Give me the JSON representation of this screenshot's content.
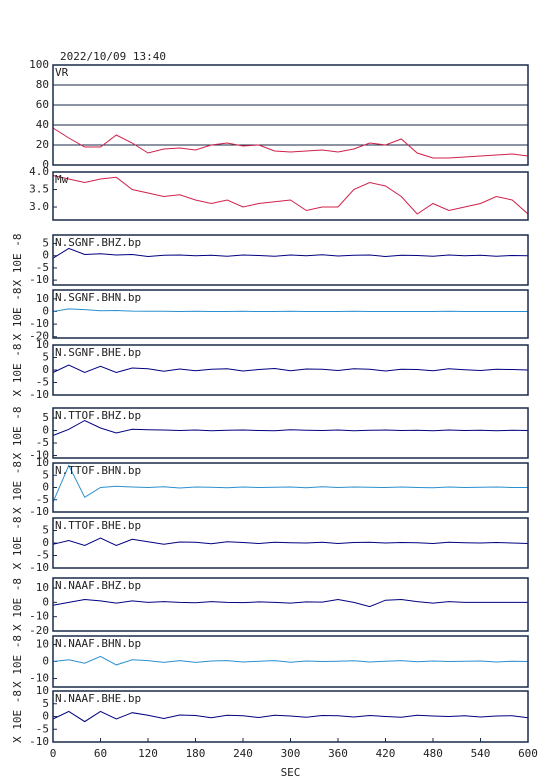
{
  "header": {
    "date": "2022/10/09 13:40"
  },
  "chart_data": [
    {
      "type": "line",
      "title": "VR",
      "color": "#d0204a",
      "grid": true,
      "xlim": [
        0,
        600
      ],
      "ylim": [
        0,
        100
      ],
      "yticks": [
        0,
        20,
        40,
        60,
        80,
        100
      ],
      "x": [
        0,
        20,
        40,
        60,
        80,
        100,
        120,
        140,
        160,
        180,
        200,
        220,
        240,
        260,
        280,
        300,
        320,
        340,
        360,
        380,
        400,
        420,
        440,
        460,
        480,
        500,
        520,
        540,
        560,
        580,
        600
      ],
      "values": [
        37,
        27,
        18,
        18,
        30,
        22,
        12,
        16,
        17,
        15,
        20,
        22,
        19,
        20,
        14,
        13,
        14,
        15,
        13,
        16,
        22,
        20,
        26,
        12,
        7,
        7,
        8,
        9,
        10,
        11,
        9
      ]
    },
    {
      "type": "line",
      "title": "Mw",
      "color": "#d0204a",
      "grid": false,
      "xlim": [
        0,
        600
      ],
      "ylim": [
        2.63,
        4.0
      ],
      "yticks": [
        {
          "value": 3,
          "label": "3.0"
        },
        3.5,
        {
          "value": 4,
          "label": "4.0"
        }
      ],
      "x": [
        0,
        20,
        40,
        60,
        80,
        100,
        120,
        140,
        160,
        180,
        200,
        220,
        240,
        260,
        280,
        300,
        320,
        340,
        360,
        380,
        400,
        420,
        440,
        460,
        480,
        500,
        520,
        540,
        560,
        580,
        600
      ],
      "values": [
        3.9,
        3.8,
        3.7,
        3.8,
        3.85,
        3.5,
        3.4,
        3.3,
        3.35,
        3.2,
        3.1,
        3.2,
        3.0,
        3.1,
        3.15,
        3.2,
        2.9,
        3.0,
        3.0,
        3.5,
        3.7,
        3.6,
        3.3,
        2.8,
        3.1,
        2.9,
        3.0,
        3.1,
        3.3,
        3.2,
        2.8
      ]
    },
    {
      "type": "line",
      "title": "N.SGNF.BHZ.bp",
      "ylabel": "X 10E -8",
      "color": "#000080",
      "grid": false,
      "xlim": [
        0,
        600
      ],
      "ylim": [
        -12,
        8.5
      ],
      "yticks": [
        5,
        0,
        -5,
        -10
      ],
      "x": [
        0,
        20,
        40,
        60,
        80,
        100,
        120,
        140,
        160,
        180,
        200,
        220,
        240,
        260,
        280,
        300,
        320,
        340,
        360,
        380,
        400,
        420,
        440,
        460,
        480,
        500,
        520,
        540,
        560,
        580,
        600
      ],
      "values": [
        -1,
        3,
        0.5,
        0.8,
        0.3,
        0.5,
        -0.3,
        0.2,
        0.3,
        0,
        0.2,
        -0.2,
        0.3,
        0.1,
        -0.2,
        0.3,
        0,
        0.4,
        -0.1,
        0.2,
        0.3,
        -0.3,
        0.2,
        0.1,
        -0.2,
        0.3,
        0,
        0.2,
        -0.2,
        0.1,
        0
      ]
    },
    {
      "type": "line",
      "title": "N.SGNF.BHN.bp",
      "ylabel": "X 10E -8",
      "color": "#2a8fd0",
      "grid": false,
      "xlim": [
        0,
        600
      ],
      "ylim": [
        -21,
        17
      ],
      "yticks": [
        10,
        0,
        -10,
        -20
      ],
      "x": [
        0,
        20,
        40,
        60,
        80,
        100,
        120,
        140,
        160,
        180,
        200,
        220,
        240,
        260,
        280,
        300,
        320,
        340,
        360,
        380,
        400,
        420,
        440,
        460,
        480,
        500,
        520,
        540,
        560,
        580,
        600
      ],
      "values": [
        0,
        2,
        1.5,
        0.5,
        0.8,
        0.3,
        0.2,
        0.1,
        0,
        0.1,
        0,
        0,
        0.1,
        0,
        0,
        0.1,
        0,
        0,
        0,
        0.1,
        0,
        0,
        0,
        0,
        0,
        0.1,
        0,
        0,
        0,
        0,
        0
      ]
    },
    {
      "type": "line",
      "title": "N.SGNF.BHE.bp",
      "ylabel": "X 10E -8",
      "color": "#000080",
      "grid": false,
      "xlim": [
        0,
        600
      ],
      "ylim": [
        -10,
        10
      ],
      "yticks": [
        10,
        5,
        0,
        -5,
        -10
      ],
      "x": [
        0,
        20,
        40,
        60,
        80,
        100,
        120,
        140,
        160,
        180,
        200,
        220,
        240,
        260,
        280,
        300,
        320,
        340,
        360,
        380,
        400,
        420,
        440,
        460,
        480,
        500,
        520,
        540,
        560,
        580,
        600
      ],
      "values": [
        -1,
        2,
        -1,
        1.5,
        -1,
        0.8,
        0.5,
        -0.5,
        0.4,
        -0.3,
        0.3,
        0.5,
        -0.4,
        0.2,
        0.6,
        -0.3,
        0.4,
        0.3,
        -0.2,
        0.5,
        0.3,
        -0.4,
        0.3,
        0.2,
        -0.3,
        0.5,
        0.1,
        -0.2,
        0.3,
        0.2,
        0
      ]
    },
    {
      "type": "line",
      "title": "N.TTOF.BHZ.bp",
      "ylabel": "X 10E -8",
      "color": "#000080",
      "grid": false,
      "xlim": [
        0,
        600
      ],
      "ylim": [
        -11,
        9
      ],
      "yticks": [
        5,
        0,
        -5,
        -10
      ],
      "x": [
        0,
        20,
        40,
        60,
        80,
        100,
        120,
        140,
        160,
        180,
        200,
        220,
        240,
        260,
        280,
        300,
        320,
        340,
        360,
        380,
        400,
        420,
        440,
        460,
        480,
        500,
        520,
        540,
        560,
        580,
        600
      ],
      "values": [
        -2,
        0.5,
        4,
        1,
        -1,
        0.5,
        0.3,
        0.2,
        0,
        0.2,
        -0.1,
        0.1,
        0.2,
        0,
        -0.1,
        0.3,
        0.1,
        0,
        0.2,
        -0.1,
        0.1,
        0.2,
        0,
        0.1,
        -0.1,
        0.2,
        0,
        0.1,
        -0.1,
        0.1,
        0
      ]
    },
    {
      "type": "line",
      "title": "N.TTOF.BHN.bp",
      "ylabel": "X 10E -8",
      "color": "#2a8fd0",
      "grid": false,
      "xlim": [
        0,
        600
      ],
      "ylim": [
        -10,
        10
      ],
      "yticks": [
        10,
        5,
        0,
        -5,
        -10
      ],
      "x": [
        0,
        20,
        40,
        60,
        80,
        100,
        120,
        140,
        160,
        180,
        200,
        220,
        240,
        260,
        280,
        300,
        320,
        340,
        360,
        380,
        400,
        420,
        440,
        460,
        480,
        500,
        520,
        540,
        560,
        580,
        600
      ],
      "values": [
        -6,
        9,
        -4,
        0,
        0.5,
        0.2,
        0,
        0.3,
        -0.2,
        0.2,
        0.1,
        -0.1,
        0.2,
        0,
        0.1,
        0.2,
        -0.1,
        0.3,
        0,
        0.2,
        0.1,
        0,
        0.2,
        0,
        -0.1,
        0.2,
        0,
        0.1,
        0.2,
        0,
        0
      ]
    },
    {
      "type": "line",
      "title": "N.TTOF.BHE.bp",
      "ylabel": "X 10E -8",
      "color": "#000080",
      "grid": false,
      "xlim": [
        0,
        600
      ],
      "ylim": [
        -10,
        10
      ],
      "yticks": [
        5,
        0,
        -5,
        -10
      ],
      "x": [
        0,
        20,
        40,
        60,
        80,
        100,
        120,
        140,
        160,
        180,
        200,
        220,
        240,
        260,
        280,
        300,
        320,
        340,
        360,
        380,
        400,
        420,
        440,
        460,
        480,
        500,
        520,
        540,
        560,
        580,
        600
      ],
      "values": [
        -0.5,
        1,
        -1,
        2,
        -1,
        1.5,
        0.5,
        -0.5,
        0.4,
        0.3,
        -0.3,
        0.5,
        0.2,
        -0.2,
        0.3,
        0.1,
        0,
        0.3,
        -0.2,
        0.2,
        0.3,
        0,
        0.2,
        0.1,
        -0.2,
        0.3,
        0.1,
        0,
        0.2,
        0,
        -0.2
      ]
    },
    {
      "type": "line",
      "title": "N.NAAF.BHZ.bp",
      "ylabel": "X 10E -8",
      "color": "#000080",
      "grid": false,
      "xlim": [
        0,
        600
      ],
      "ylim": [
        -20,
        17
      ],
      "yticks": [
        10,
        0,
        -10,
        -20
      ],
      "x": [
        0,
        20,
        40,
        60,
        80,
        100,
        120,
        140,
        160,
        180,
        200,
        220,
        240,
        260,
        280,
        300,
        320,
        340,
        360,
        380,
        400,
        420,
        440,
        460,
        480,
        500,
        520,
        540,
        560,
        580,
        600
      ],
      "values": [
        -2,
        0,
        2,
        1,
        -0.5,
        1,
        0,
        0.5,
        0,
        -0.3,
        0.5,
        0,
        -0.2,
        0.3,
        0,
        -0.5,
        0.3,
        0.2,
        2,
        0,
        -3,
        1.5,
        2,
        0.5,
        -0.5,
        0.5,
        0,
        0,
        0,
        0,
        0
      ]
    },
    {
      "type": "line",
      "title": "N.NAAF.BHN.bp",
      "ylabel": "X 10E -8",
      "color": "#2a8fd0",
      "grid": false,
      "xlim": [
        0,
        600
      ],
      "ylim": [
        -15,
        15
      ],
      "yticks": [
        10,
        0,
        -10
      ],
      "x": [
        0,
        20,
        40,
        60,
        80,
        100,
        120,
        140,
        160,
        180,
        200,
        220,
        240,
        260,
        280,
        300,
        320,
        340,
        360,
        380,
        400,
        420,
        440,
        460,
        480,
        500,
        520,
        540,
        560,
        580,
        600
      ],
      "values": [
        0,
        1,
        -1,
        3,
        -2,
        1,
        0.5,
        -0.5,
        0.5,
        -0.5,
        0.3,
        0.5,
        -0.3,
        0.2,
        0.5,
        -0.4,
        0.3,
        0,
        0.2,
        0.4,
        -0.3,
        0.2,
        0.5,
        -0.2,
        0.3,
        0,
        0.2,
        0.3,
        -0.3,
        0.2,
        0
      ]
    },
    {
      "type": "line",
      "title": "N.NAAF.BHE.bp",
      "ylabel": "X 10E -8",
      "xlabel": "SEC",
      "color": "#000080",
      "grid": false,
      "xlim": [
        0,
        600
      ],
      "ylim": [
        -10,
        10
      ],
      "yticks": [
        10,
        5,
        0,
        -5,
        -10
      ],
      "xticks": [
        0,
        60,
        120,
        180,
        240,
        300,
        360,
        420,
        480,
        540,
        600
      ],
      "x": [
        0,
        20,
        40,
        60,
        80,
        100,
        120,
        140,
        160,
        180,
        200,
        220,
        240,
        260,
        280,
        300,
        320,
        340,
        360,
        380,
        400,
        420,
        440,
        460,
        480,
        500,
        520,
        540,
        560,
        580,
        600
      ],
      "values": [
        -1,
        2,
        -2,
        2,
        -1,
        1.5,
        0.5,
        -0.8,
        0.6,
        0.4,
        -0.5,
        0.5,
        0.3,
        -0.4,
        0.5,
        0.2,
        -0.3,
        0.4,
        0.3,
        -0.2,
        0.4,
        0,
        -0.3,
        0.5,
        0.2,
        0,
        0.3,
        -0.2,
        0.2,
        0.3,
        -0.5
      ]
    }
  ]
}
